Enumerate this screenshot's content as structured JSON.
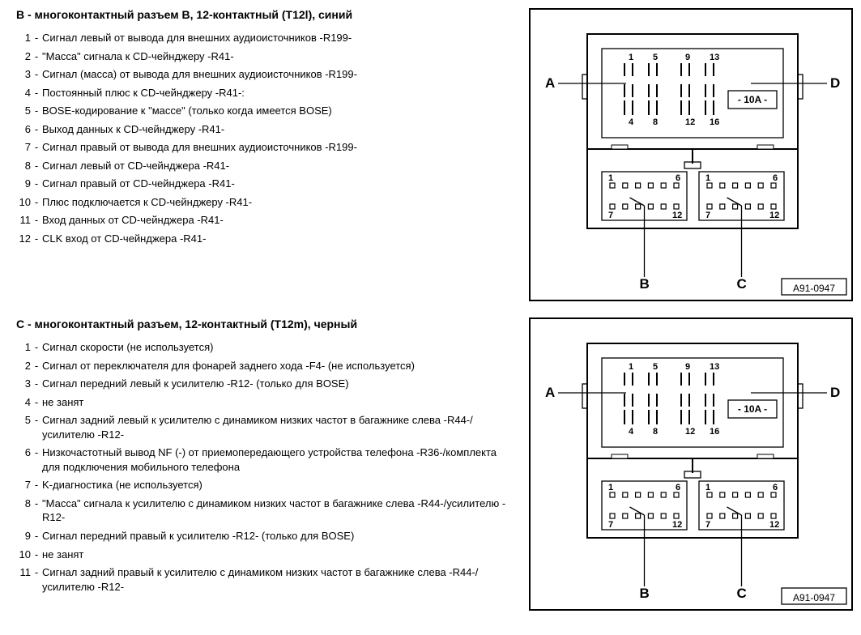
{
  "sectionB": {
    "title": "B - многоконтактный разъем B, 12-контактный (T12l), синий",
    "items": [
      {
        "n": "1",
        "t": "Сигнал левый от вывода для внешних аудиоисточников -R199-"
      },
      {
        "n": "2",
        "t": "\"Масса\" сигнала к CD-чейнджеру -R41-"
      },
      {
        "n": "3",
        "t": "Сигнал (масса) от вывода для внешних аудиоисточников -R199-"
      },
      {
        "n": "4",
        "t": "Постоянный плюс к CD-чейнджеру -R41-:"
      },
      {
        "n": "5",
        "t": "BOSE-кодирование к \"массе\" (только когда имеется BOSE)"
      },
      {
        "n": "6",
        "t": "Выход данных к CD-чейнджеру -R41-"
      },
      {
        "n": "7",
        "t": "Сигнал правый от вывода для внешних аудиоисточников -R199-"
      },
      {
        "n": "8",
        "t": "Сигнал левый от CD-чейнджера -R41-"
      },
      {
        "n": "9",
        "t": "Сигнал правый от CD-чейнджера -R41-"
      },
      {
        "n": "10",
        "t": "Плюс подключается к CD-чейнджеру -R41-"
      },
      {
        "n": "11",
        "t": "Вход данных от CD-чейнджера -R41-"
      },
      {
        "n": "12",
        "t": "CLK вход от CD-чейнджера -R41-"
      }
    ]
  },
  "sectionC": {
    "title": "C - многоконтактный разъем, 12-контактный (T12m), черный",
    "items": [
      {
        "n": "1",
        "t": "Сигнал скорости (не используется)"
      },
      {
        "n": "2",
        "t": "Сигнал от переключателя для фонарей заднего хода -F4- (не используется)"
      },
      {
        "n": "3",
        "t": "Сигнал передний левый к усилителю -R12- (только для BOSE)"
      },
      {
        "n": "4",
        "t": "не занят"
      },
      {
        "n": "5",
        "t": "Сигнал задний левый к усилителю с динамиком низких частот в багажнике слева -R44-/усилителю -R12-"
      },
      {
        "n": "6",
        "t": "Низкочастотный вывод NF (-) от приемопередающего устройства телефона -R36-/комплекта для подключения мобильного телефона"
      },
      {
        "n": "7",
        "t": "K-диагностика (не используется)"
      },
      {
        "n": "8",
        "t": "\"Масса\" сигнала к усилителю с динамиком низких частот в багажнике слева -R44-/усилителю -R12-"
      },
      {
        "n": "9",
        "t": "Сигнал передний правый к усилителю -R12- (только для BOSE)"
      },
      {
        "n": "10",
        "t": "не занят"
      },
      {
        "n": "11",
        "t": "Сигнал задний правый к усилителю с динамиком низких частот в багажнике слева -R44-/усилителю -R12-"
      }
    ]
  },
  "diagram": {
    "letters": {
      "A": "A",
      "B": "B",
      "C": "C",
      "D": "D"
    },
    "top_nums": [
      "1",
      "5",
      "9",
      "13",
      "4",
      "8",
      "12",
      "16"
    ],
    "bot_nums": [
      "1",
      "6",
      "1",
      "6",
      "7",
      "12",
      "7",
      "12"
    ],
    "fuse": "- 10A -",
    "code": "A91-0947",
    "outer_stroke": "#000000",
    "stroke_w": 2,
    "thin_w": 1.3,
    "bg": "#ffffff"
  }
}
